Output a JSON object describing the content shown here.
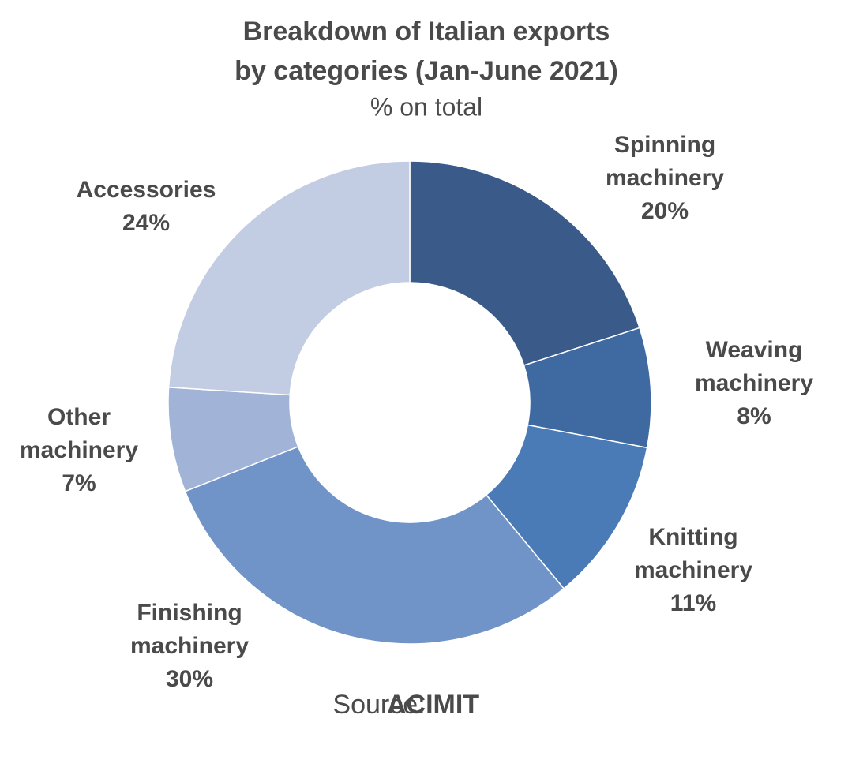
{
  "chart_data": {
    "type": "donut",
    "title": [
      "Breakdown of Italian exports",
      "by categories (Jan-June 2021)"
    ],
    "subtitle": "% on total",
    "categories": [
      "Spinning machinery",
      "Weaving machinery",
      "Knitting machinery",
      "Finishing machinery",
      "Other machinery",
      "Accessories"
    ],
    "values": [
      20,
      8,
      11,
      30,
      7,
      24
    ],
    "value_labels": [
      "20%",
      "8%",
      "11%",
      "30%",
      "7%",
      "24%"
    ],
    "colors": [
      "#3a5b8a",
      "#3e6aa1",
      "#4a7bb6",
      "#7194c8",
      "#a1b4d8",
      "#c2cde3"
    ],
    "source_label": "Source:",
    "source": "ACIMIT"
  }
}
